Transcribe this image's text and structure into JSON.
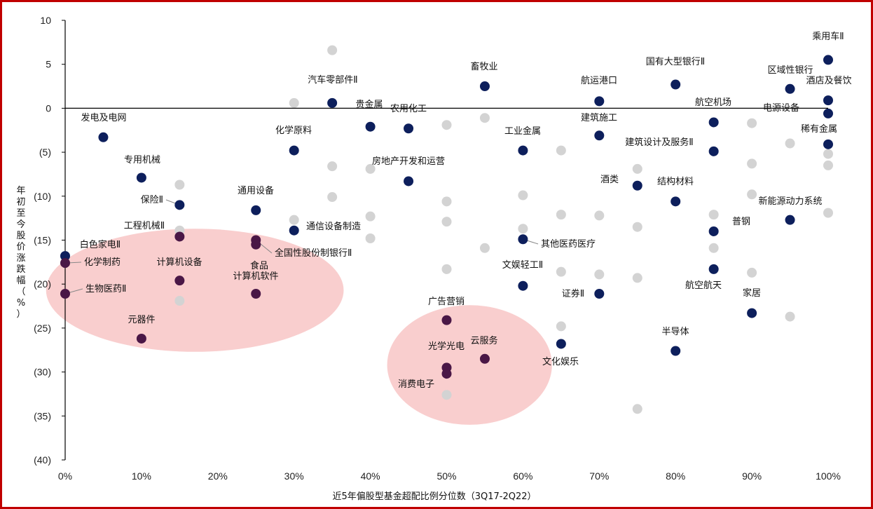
{
  "chart_data": {
    "type": "scatter",
    "xlabel": "近5年偏股型基金超配比例分位数（3Q17-2Q22）",
    "ylabel": "年初至今股价涨跌幅（%）",
    "xlim": [
      0,
      100
    ],
    "ylim": [
      -40,
      10
    ],
    "x_ticks": [
      "0%",
      "10%",
      "20%",
      "30%",
      "40%",
      "50%",
      "60%",
      "70%",
      "80%",
      "90%",
      "100%"
    ],
    "y_ticks": [
      "10",
      "5",
      "0",
      "(5)",
      "(10)",
      "(15)",
      "(20)",
      "(25)",
      "(30)",
      "(35)",
      "(40)"
    ],
    "colors": {
      "highlight": "#0d1f5c",
      "background": "#d3d3d3",
      "ellipse": "#f4a6a6",
      "frame": "#c00000"
    },
    "highlighted": [
      {
        "label": "发电及电网",
        "x": 5,
        "y": -3.3
      },
      {
        "label": "专用机械",
        "x": 10,
        "y": -7.9
      },
      {
        "label": "保险Ⅱ",
        "x": 15,
        "y": -11.0
      },
      {
        "label": "工程机械Ⅱ",
        "x": 15,
        "y": -14.6
      },
      {
        "label": "白色家电Ⅱ",
        "x": 0,
        "y": -16.8
      },
      {
        "label": "化学制药",
        "x": 0,
        "y": -17.6
      },
      {
        "label": "生物医药Ⅱ",
        "x": 0,
        "y": -21.1
      },
      {
        "label": "计算机设备",
        "x": 15,
        "y": -19.6
      },
      {
        "label": "元器件",
        "x": 10,
        "y": -26.2
      },
      {
        "label": "通用设备",
        "x": 25,
        "y": -11.6
      },
      {
        "label": "全国性股份制银行Ⅱ",
        "x": 25,
        "y": -15.0
      },
      {
        "label": "食品",
        "x": 25,
        "y": -15.5
      },
      {
        "label": "计算机软件",
        "x": 25,
        "y": -21.1
      },
      {
        "label": "化学原料",
        "x": 30,
        "y": -4.8
      },
      {
        "label": "通信设备制造",
        "x": 30,
        "y": -13.9
      },
      {
        "label": "汽车零部件Ⅱ",
        "x": 35,
        "y": 0.6
      },
      {
        "label": "贵金属",
        "x": 40,
        "y": -2.1
      },
      {
        "label": "农用化工",
        "x": 45,
        "y": -2.3
      },
      {
        "label": "房地产开发和运营",
        "x": 45,
        "y": -8.3
      },
      {
        "label": "畜牧业",
        "x": 55,
        "y": 2.5
      },
      {
        "label": "广告营销",
        "x": 50,
        "y": -24.1
      },
      {
        "label": "光学光电",
        "x": 50,
        "y": -29.5
      },
      {
        "label": "消费电子",
        "x": 50,
        "y": -30.2
      },
      {
        "label": "云服务",
        "x": 55,
        "y": -28.5
      },
      {
        "label": "工业金属",
        "x": 60,
        "y": -4.8
      },
      {
        "label": "其他医药医疗",
        "x": 60,
        "y": -14.9
      },
      {
        "label": "文娱轻工Ⅱ",
        "x": 60,
        "y": -20.2
      },
      {
        "label": "文化娱乐",
        "x": 65,
        "y": -26.8
      },
      {
        "label": "航运港口",
        "x": 70,
        "y": 0.8
      },
      {
        "label": "建筑施工",
        "x": 70,
        "y": -3.1
      },
      {
        "label": "证券Ⅱ",
        "x": 70,
        "y": -21.1
      },
      {
        "label": "酒类",
        "x": 75,
        "y": -8.8
      },
      {
        "label": "国有大型银行Ⅱ",
        "x": 80,
        "y": 2.7
      },
      {
        "label": "结构材料",
        "x": 80,
        "y": -10.6
      },
      {
        "label": "半导体",
        "x": 80,
        "y": -27.6
      },
      {
        "label": "航空机场",
        "x": 85,
        "y": -1.6
      },
      {
        "label": "建筑设计及服务Ⅱ",
        "x": 85,
        "y": -4.9
      },
      {
        "label": "普钢",
        "x": 85,
        "y": -14.0
      },
      {
        "label": "航空航天",
        "x": 85,
        "y": -18.3
      },
      {
        "label": "家居",
        "x": 90,
        "y": -23.3
      },
      {
        "label": "区域性银行",
        "x": 95,
        "y": 2.2
      },
      {
        "label": "新能源动力系统",
        "x": 95,
        "y": -12.7
      },
      {
        "label": "乘用车Ⅱ",
        "x": 100,
        "y": 5.5
      },
      {
        "label": "酒店及餐饮",
        "x": 100,
        "y": 0.9
      },
      {
        "label": "电源设备",
        "x": 100,
        "y": -0.6
      },
      {
        "label": "稀有金属",
        "x": 100,
        "y": -4.1
      }
    ],
    "others": [
      {
        "x": 15,
        "y": -8.7
      },
      {
        "x": 15,
        "y": -13.9
      },
      {
        "x": 15,
        "y": -21.9
      },
      {
        "x": 30,
        "y": 0.6
      },
      {
        "x": 30,
        "y": -12.7
      },
      {
        "x": 35,
        "y": 6.6
      },
      {
        "x": 35,
        "y": -6.6
      },
      {
        "x": 35,
        "y": -10.1
      },
      {
        "x": 40,
        "y": -6.9
      },
      {
        "x": 40,
        "y": -12.3
      },
      {
        "x": 40,
        "y": -14.8
      },
      {
        "x": 50,
        "y": -1.9
      },
      {
        "x": 50,
        "y": -10.6
      },
      {
        "x": 50,
        "y": -12.9
      },
      {
        "x": 50,
        "y": -18.3
      },
      {
        "x": 50,
        "y": -32.6
      },
      {
        "x": 55,
        "y": -1.1
      },
      {
        "x": 55,
        "y": -15.9
      },
      {
        "x": 60,
        "y": -9.9
      },
      {
        "x": 60,
        "y": -13.7
      },
      {
        "x": 65,
        "y": -4.8
      },
      {
        "x": 65,
        "y": -12.1
      },
      {
        "x": 65,
        "y": -18.6
      },
      {
        "x": 65,
        "y": -24.8
      },
      {
        "x": 70,
        "y": -12.2
      },
      {
        "x": 70,
        "y": -18.9
      },
      {
        "x": 75,
        "y": -6.9
      },
      {
        "x": 75,
        "y": -13.5
      },
      {
        "x": 75,
        "y": -19.3
      },
      {
        "x": 75,
        "y": -34.2
      },
      {
        "x": 85,
        "y": -12.1
      },
      {
        "x": 85,
        "y": -15.9
      },
      {
        "x": 90,
        "y": -1.7
      },
      {
        "x": 90,
        "y": -6.3
      },
      {
        "x": 90,
        "y": -9.8
      },
      {
        "x": 90,
        "y": -18.7
      },
      {
        "x": 95,
        "y": -4.0
      },
      {
        "x": 95,
        "y": -23.7
      },
      {
        "x": 100,
        "y": -5.2
      },
      {
        "x": 100,
        "y": -6.5
      },
      {
        "x": 100,
        "y": -11.9
      }
    ],
    "ellipses": [
      {
        "center_x": 17,
        "center_y": -20.7,
        "radius_x": 19.5,
        "radius_y": 7.0
      },
      {
        "center_x": 53,
        "center_y": -29.2,
        "radius_x": 10.8,
        "radius_y": 6.8
      }
    ],
    "grid": false,
    "legend": "none"
  }
}
